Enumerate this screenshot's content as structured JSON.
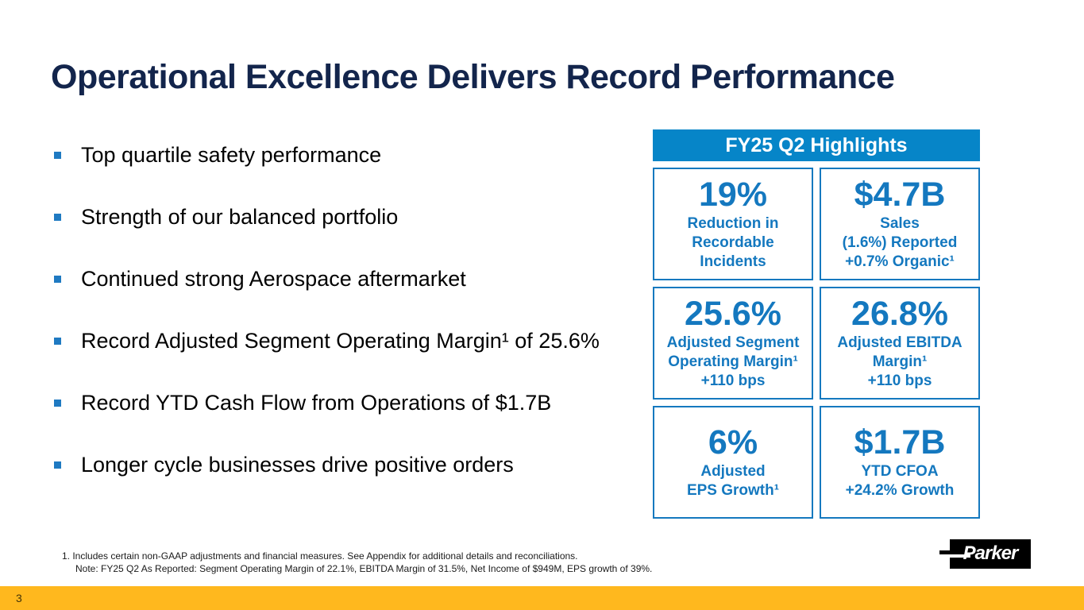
{
  "slide": {
    "title": "Operational Excellence Delivers Record Performance",
    "page_number": "3"
  },
  "bullets": [
    {
      "label": "Top quartile safety performance"
    },
    {
      "label": "Strength of our balanced portfolio"
    },
    {
      "label": "Continued strong Aerospace aftermarket"
    },
    {
      "label": "Record Adjusted Segment Operating Margin¹ of 25.6%"
    },
    {
      "label": "Record YTD Cash Flow from Operations of $1.7B"
    },
    {
      "label": "Longer cycle businesses drive positive orders"
    }
  ],
  "highlights": {
    "header": "FY25 Q2 Highlights",
    "stats": [
      {
        "value": "19%",
        "label": "Reduction in\nRecordable\nIncidents"
      },
      {
        "value": "$4.7B",
        "label": "Sales\n(1.6%) Reported\n+0.7% Organic¹"
      },
      {
        "value": "25.6%",
        "label": "Adjusted Segment\nOperating Margin¹\n+110 bps"
      },
      {
        "value": "26.8%",
        "label": "Adjusted EBITDA\nMargin¹\n+110 bps"
      },
      {
        "value": "6%",
        "label": "Adjusted\nEPS Growth¹"
      },
      {
        "value": "$1.7B",
        "label": "YTD CFOA\n+24.2% Growth"
      }
    ]
  },
  "footnotes": {
    "line1": "1. Includes certain non-GAAP adjustments and financial measures. See Appendix for additional details and reconciliations.",
    "line2": "Note: FY25 Q2 As Reported: Segment Operating Margin of 22.1%, EBITDA Margin of 31.5%, Net Income of $949M, EPS growth of 39%."
  },
  "logo": {
    "text": "Parker"
  },
  "colors": {
    "title_navy": "#13254C",
    "accent_blue_header": "#0685C8",
    "box_border_blue": "#1579BF",
    "stat_text_blue": "#1478BF",
    "bullet_square_blue": "#1F7AC2",
    "footer_yellow": "#FFB81E",
    "logo_black": "#000000"
  }
}
